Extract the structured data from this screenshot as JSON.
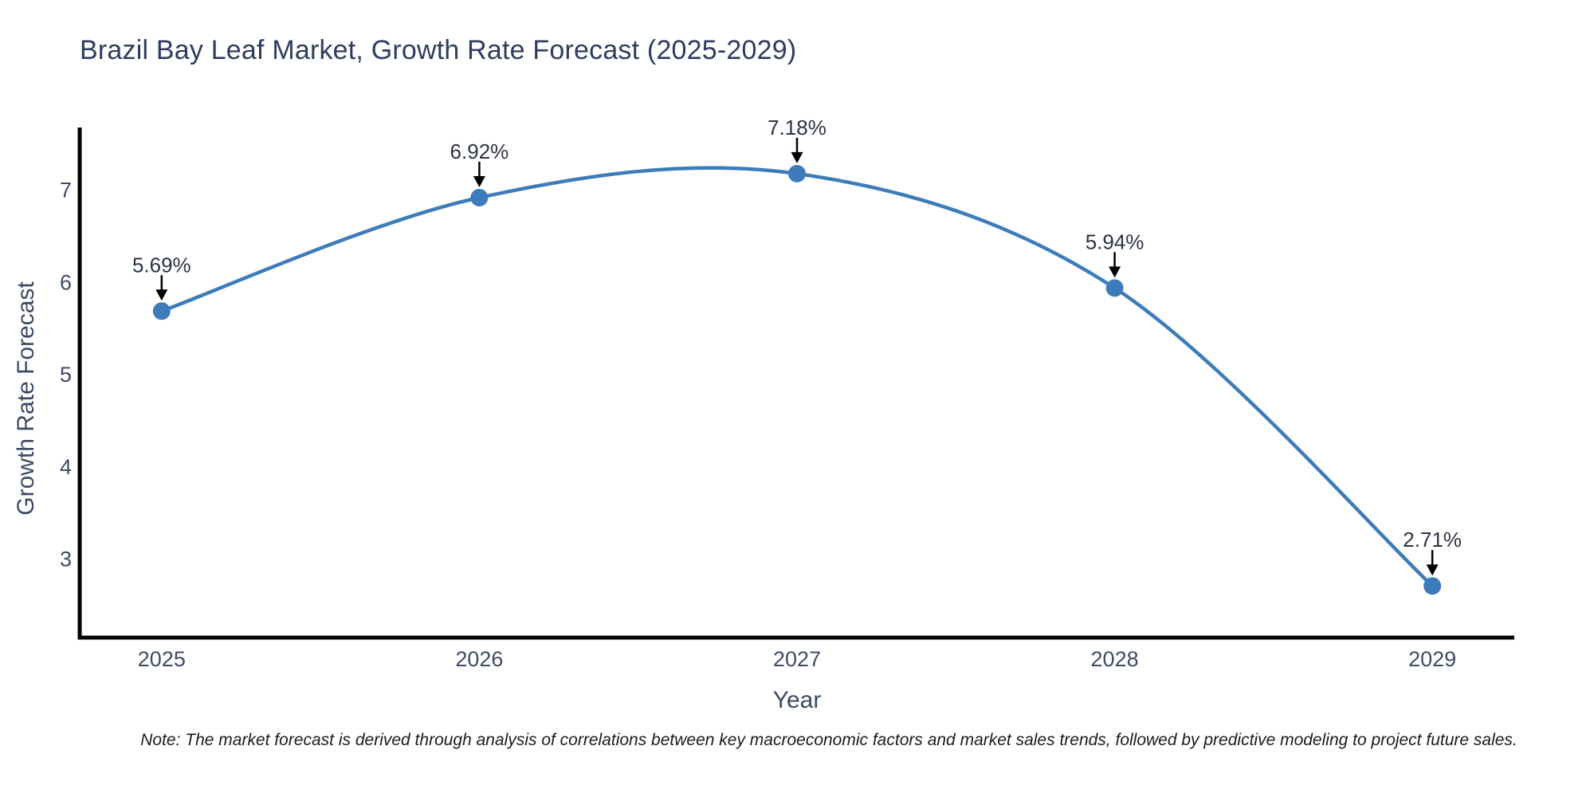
{
  "page": {
    "background": "#ffffff"
  },
  "chart_data": {
    "type": "line",
    "title": "Brazil Bay Leaf Market, Growth Rate Forecast (2025-2029)",
    "xlabel": "Year",
    "ylabel": "Growth Rate Forecast",
    "x": [
      2025,
      2026,
      2027,
      2028,
      2029
    ],
    "values": [
      5.69,
      6.92,
      7.18,
      5.94,
      2.71
    ],
    "point_labels": [
      "5.69%",
      "6.92%",
      "7.18%",
      "5.94%",
      "2.71%"
    ],
    "x_tick_labels": [
      "2025",
      "2026",
      "2027",
      "2028",
      "2029"
    ],
    "y_tick_values": [
      3,
      4,
      5,
      6,
      7
    ],
    "xlim": [
      2024.742,
      2029.258
    ],
    "ylim": [
      2.15,
      7.68
    ],
    "line_shape": "spline",
    "grid": false,
    "legend": "none",
    "marker_style": "circle",
    "annotation_arrows": true,
    "colors": {
      "line": "#3d7cba",
      "marker": "#3d7cba",
      "axis": "#000000",
      "title_text": "#2e3d5e",
      "axis_title_text": "#3b4a63",
      "tick_text": "#3e4c63",
      "annotation_text": "#2b3340",
      "arrow": "#000000",
      "background": "#ffffff"
    }
  },
  "note": "Note: The market forecast is derived through analysis of correlations between key macroeconomic factors and market sales trends, followed by predictive modeling to project future sales."
}
